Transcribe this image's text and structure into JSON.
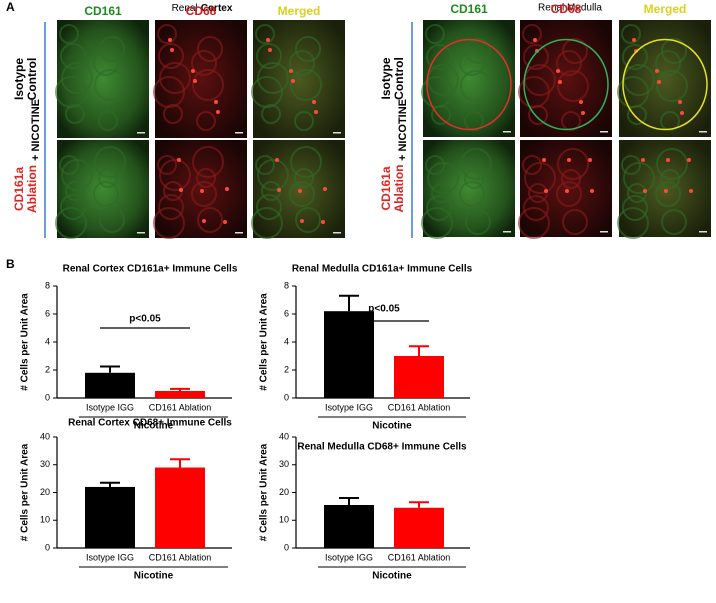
{
  "panel_a": {
    "label": "A",
    "cortex": {
      "title_prefix": "Renal",
      "title_bold": "Cortex",
      "columns": [
        "CD161",
        "CD68",
        "Merged"
      ],
      "side_label": "+ NICOTINE",
      "rows": [
        [
          "Isotype",
          "Control"
        ],
        [
          "CD161a",
          "Ablation"
        ]
      ]
    },
    "medulla": {
      "title": "Renal Medulla",
      "columns": [
        "CD161",
        "CD68",
        "Merged"
      ],
      "side_label": "+ NICOTINE",
      "rows": [
        [
          "Isotype",
          "Control"
        ],
        [
          "CD161a",
          "Ablation"
        ]
      ]
    }
  },
  "panel_b": {
    "label": "B"
  },
  "chart_data": [
    {
      "type": "bar",
      "title": "Renal Cortex CD161a+ Immune Cells",
      "categories": [
        "Isotype IGG",
        "CD161 Ablation"
      ],
      "values": [
        1.8,
        0.5
      ],
      "errors": [
        0.45,
        0.15
      ],
      "colors": [
        "#000000",
        "#ff0000"
      ],
      "ylim": [
        0,
        8
      ],
      "yticks": [
        0,
        2,
        4,
        6,
        8
      ],
      "ylabel": "# Cells per Unit Area",
      "xlabel": "Nicotine",
      "annotation": "p<0.05"
    },
    {
      "type": "bar",
      "title": "Renal Medulla CD161a+ Immune Cells",
      "categories": [
        "Isotype IGG",
        "CD161 Ablation"
      ],
      "values": [
        6.2,
        3.0
      ],
      "errors": [
        1.1,
        0.7
      ],
      "colors": [
        "#000000",
        "#ff0000"
      ],
      "ylim": [
        0,
        8
      ],
      "yticks": [
        0,
        2,
        4,
        6,
        8
      ],
      "ylabel": "# Cells per Unit Area",
      "xlabel": "Nicotine",
      "annotation": "p<0.05"
    },
    {
      "type": "bar",
      "title": "Renal Cortex CD68+ Immune  Cells",
      "categories": [
        "Isotype IGG",
        "CD161 Ablation"
      ],
      "values": [
        22,
        29
      ],
      "errors": [
        1.5,
        3
      ],
      "colors": [
        "#000000",
        "#ff0000"
      ],
      "ylim": [
        0,
        40
      ],
      "yticks": [
        0,
        10,
        20,
        30,
        40
      ],
      "ylabel": "# Cells per Unit Area",
      "xlabel": "Nicotine"
    },
    {
      "type": "bar",
      "title": "Renal Medulla CD68+ Immune Cells",
      "categories": [
        "Isotype IGG",
        "CD161 Ablation"
      ],
      "values": [
        15.5,
        14.5
      ],
      "errors": [
        2.5,
        2
      ],
      "colors": [
        "#000000",
        "#ff0000"
      ],
      "ylim": [
        0,
        40
      ],
      "yticks": [
        0,
        10,
        20,
        30,
        40
      ],
      "ylabel": "# Cells per Unit Area",
      "xlabel": "Nicotine"
    }
  ]
}
